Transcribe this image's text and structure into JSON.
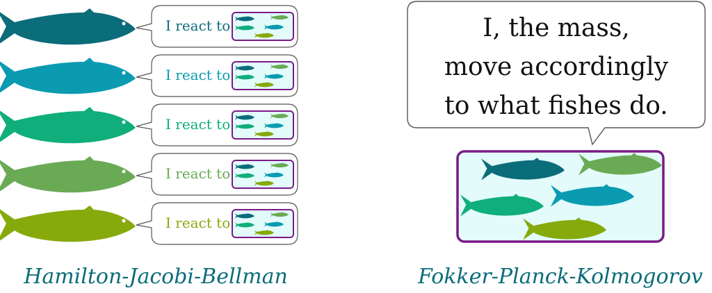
{
  "colors": {
    "fish": [
      "#0b6c7a",
      "#0a9bb0",
      "#0fae7a",
      "#6aaa55",
      "#86a90c"
    ],
    "box_border": "#7a1a86",
    "box_fill": "#e3fbfb",
    "caption": "#0b6c7a",
    "bubble_border": "#555555",
    "text_dark": "#111111"
  },
  "left_rows": {
    "items": [
      {
        "react_label": "I react to"
      },
      {
        "react_label": "I react to"
      },
      {
        "react_label": "I react to"
      },
      {
        "react_label": "I react to"
      },
      {
        "react_label": "I react to"
      }
    ]
  },
  "right_bubble": {
    "lines": [
      "I, the mass,",
      "move accordingly",
      "to what fishes do."
    ]
  },
  "captions": {
    "left": "Hamilton-Jacobi-Bellman",
    "right": "Fokker-Planck-Kolmogorov"
  }
}
